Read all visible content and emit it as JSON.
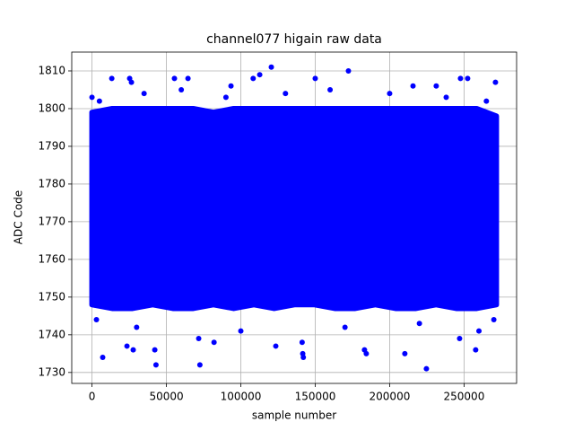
{
  "chart_data": {
    "type": "scatter",
    "title": "channel077 higain raw data",
    "xlabel": "sample number",
    "ylabel": "ADC Code",
    "color": "#0000ff",
    "grid": true,
    "xlim": [
      -13600,
      285300
    ],
    "ylim": [
      1727.1,
      1815
    ],
    "xticks": [
      0,
      50000,
      100000,
      150000,
      200000,
      250000
    ],
    "yticks": [
      1730,
      1740,
      1750,
      1760,
      1770,
      1780,
      1790,
      1800,
      1810
    ],
    "band": {
      "x": [
        0,
        13600,
        27200,
        40800,
        54400,
        68000,
        81600,
        95200,
        108800,
        122400,
        136000,
        149600,
        163200,
        176800,
        190400,
        204000,
        217600,
        231200,
        244800,
        258400,
        271700
      ],
      "low": [
        1748,
        1747,
        1747,
        1748,
        1747,
        1747,
        1748,
        1747,
        1748,
        1747,
        1748,
        1748,
        1747,
        1747,
        1748,
        1747,
        1747,
        1748,
        1747,
        1747,
        1748
      ],
      "high": [
        1799,
        1800,
        1800,
        1800,
        1800,
        1800,
        1799,
        1800,
        1800,
        1800,
        1800,
        1800,
        1800,
        1800,
        1800,
        1800,
        1800,
        1800,
        1800,
        1800,
        1798
      ]
    },
    "x": [
      0,
      7200,
      13300,
      25300,
      26500,
      23500,
      27700,
      42200,
      43000,
      55400,
      71700,
      72500,
      64500,
      82000,
      93400,
      112700,
      120500,
      108300,
      123500,
      141600,
      142000,
      141200,
      150000,
      172300,
      183100,
      184300,
      210200,
      224700,
      215700,
      231300,
      247600,
      252400,
      247000,
      257800,
      271100,
      270000,
      5000,
      35000,
      60000,
      90000,
      130000,
      160000,
      200000,
      238000,
      265000,
      3000,
      30000,
      100000,
      170000,
      220000,
      260000
    ],
    "values": [
      1803,
      1734,
      1808,
      1808,
      1807,
      1737,
      1736,
      1736,
      1732,
      1808,
      1739,
      1732,
      1808,
      1738,
      1806,
      1809,
      1811,
      1808,
      1737,
      1735,
      1734,
      1738,
      1808,
      1810,
      1736,
      1735,
      1735,
      1731,
      1806,
      1806,
      1808,
      1808,
      1739,
      1736,
      1807,
      1744,
      1802,
      1804,
      1805,
      1803,
      1804,
      1805,
      1804,
      1803,
      1802,
      1744,
      1742,
      1741,
      1742,
      1743,
      1741
    ]
  }
}
